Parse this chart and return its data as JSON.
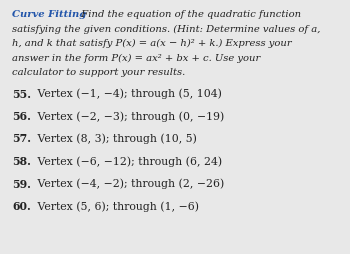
{
  "bg_color": "#e8e8e8",
  "title_color": "#2255aa",
  "text_color": "#222222",
  "title": "Curve Fitting",
  "header_line1_rest": "  Find the equation of the quadratic function",
  "header_lines": [
    "satisfying the given conditions. (Hint: Determine values of a,",
    "h, and k that satisfy P(x) = a(x − h)² + k.) Express your",
    "answer in the form P(x) = ax² + bx + c. Use your",
    "calculator to support your results."
  ],
  "problems": [
    {
      "num": "55.",
      "text": " Vertex (−1, −4); through (5, 104)"
    },
    {
      "num": "56.",
      "text": " Vertex (−2, −3); through (0, −19)"
    },
    {
      "num": "57.",
      "text": " Vertex (8, 3); through (10, 5)"
    },
    {
      "num": "58.",
      "text": " Vertex (−6, −12); through (6, 24)"
    },
    {
      "num": "59.",
      "text": " Vertex (−4, −2); through (2, −26)"
    },
    {
      "num": "60.",
      "text": " Vertex (5, 6); through (1, −6)"
    }
  ],
  "fs_header": 7.2,
  "fs_problems": 7.8,
  "fig_width": 3.5,
  "fig_height": 2.54,
  "dpi": 100
}
